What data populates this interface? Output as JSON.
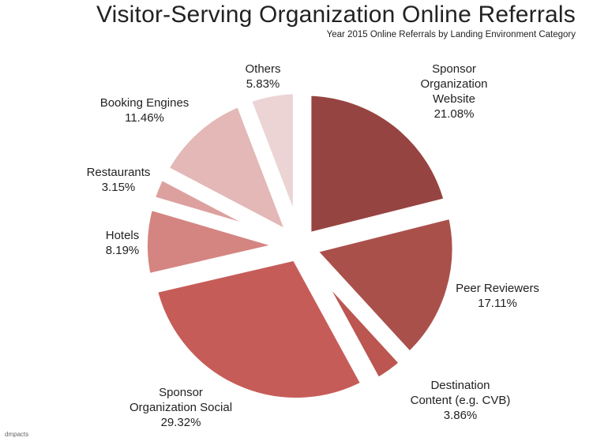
{
  "chart_data": {
    "type": "pie",
    "title": "Visitor-Serving Organization Online Referrals",
    "subtitle": "Year 2015 Online Referrals by Landing Environment Category",
    "slices": [
      {
        "label": [
          "Sponsor",
          "Organization",
          "Website"
        ],
        "value": 21.08,
        "value_label": "21.08%",
        "color": "#964441"
      },
      {
        "label": [
          "Peer Reviewers"
        ],
        "value": 17.11,
        "value_label": "17.11%",
        "color": "#aa504b"
      },
      {
        "label": [
          "Destination",
          "Content (e.g. CVB)"
        ],
        "value": 3.86,
        "value_label": "3.86%",
        "color": "#bb5650"
      },
      {
        "label": [
          "Sponsor",
          "Organization Social"
        ],
        "value": 29.32,
        "value_label": "29.32%",
        "color": "#c65c58"
      },
      {
        "label": [
          "Hotels"
        ],
        "value": 8.19,
        "value_label": "8.19%",
        "color": "#d48581"
      },
      {
        "label": [
          "Restaurants"
        ],
        "value": 3.15,
        "value_label": "3.15%",
        "color": "#dca19e"
      },
      {
        "label": [
          "Booking Engines"
        ],
        "value": 11.46,
        "value_label": "11.46%",
        "color": "#e3b8b6"
      },
      {
        "label": [
          "Others"
        ],
        "value": 5.83,
        "value_label": "5.83%",
        "color": "#ebd4d3"
      }
    ]
  },
  "footer": {
    "credit": "dmpacts"
  }
}
